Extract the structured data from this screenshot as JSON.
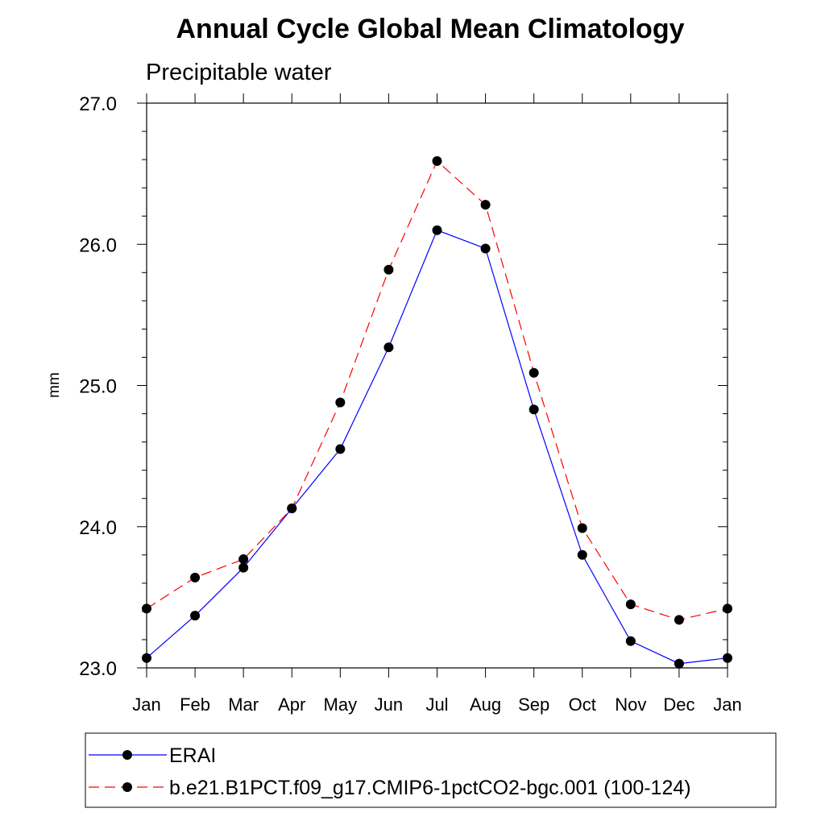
{
  "chart_data": {
    "type": "line",
    "title": "Annual Cycle Global Mean Climatology",
    "subtitle": "Precipitable water",
    "xlabel": "",
    "ylabel": "mm",
    "categories": [
      "Jan",
      "Feb",
      "Mar",
      "Apr",
      "May",
      "Jun",
      "Jul",
      "Aug",
      "Sep",
      "Oct",
      "Nov",
      "Dec",
      "Jan"
    ],
    "ylim": [
      23.0,
      27.0
    ],
    "yticks": [
      "23.0",
      "24.0",
      "25.0",
      "26.0",
      "27.0"
    ],
    "grid": false,
    "legend_position": "bottom",
    "series": [
      {
        "name": "ERAI",
        "color": "#0000ff",
        "dash": "solid",
        "values": [
          23.07,
          23.37,
          23.71,
          24.13,
          24.55,
          25.27,
          26.1,
          25.97,
          24.83,
          23.8,
          23.19,
          23.03,
          23.07
        ]
      },
      {
        "name": "b.e21.B1PCT.f09_g17.CMIP6-1pctCO2-bgc.001 (100-124)",
        "color": "#ff0000",
        "dash": "dashed",
        "values": [
          23.42,
          23.64,
          23.77,
          24.13,
          24.88,
          25.82,
          26.59,
          26.28,
          25.09,
          23.99,
          23.45,
          23.34,
          23.42
        ]
      }
    ]
  }
}
